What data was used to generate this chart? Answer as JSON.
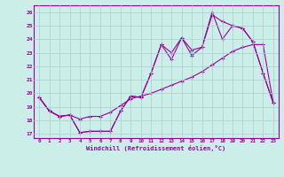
{
  "xlabel": "Windchill (Refroidissement éolien,°C)",
  "background_color": "#cceee8",
  "grid_color": "#aacccc",
  "line_color": "#990099",
  "xlim": [
    -0.5,
    23.5
  ],
  "ylim": [
    16.7,
    26.5
  ],
  "xticks": [
    0,
    1,
    2,
    3,
    4,
    5,
    6,
    7,
    8,
    9,
    10,
    11,
    12,
    13,
    14,
    15,
    16,
    17,
    18,
    19,
    20,
    21,
    22,
    23
  ],
  "yticks": [
    17,
    18,
    19,
    20,
    21,
    22,
    23,
    24,
    25,
    26
  ],
  "line1": [
    19.7,
    18.7,
    18.3,
    18.4,
    17.1,
    17.2,
    17.2,
    17.2,
    18.7,
    19.8,
    19.7,
    21.5,
    23.6,
    23.0,
    24.1,
    23.2,
    23.4,
    25.8,
    25.3,
    25.0,
    24.8,
    23.8,
    21.5,
    19.3
  ],
  "line2": [
    19.7,
    18.7,
    18.3,
    18.4,
    17.1,
    17.2,
    17.2,
    17.2,
    18.7,
    19.8,
    19.7,
    21.5,
    23.6,
    22.5,
    24.1,
    22.8,
    23.4,
    26.0,
    24.0,
    25.0,
    24.8,
    23.8,
    21.5,
    19.3
  ],
  "line3": [
    19.7,
    18.7,
    18.3,
    18.4,
    18.1,
    18.3,
    18.3,
    18.6,
    19.1,
    19.6,
    19.8,
    20.0,
    20.3,
    20.6,
    20.9,
    21.2,
    21.6,
    22.1,
    22.6,
    23.1,
    23.4,
    23.6,
    23.6,
    19.3
  ]
}
